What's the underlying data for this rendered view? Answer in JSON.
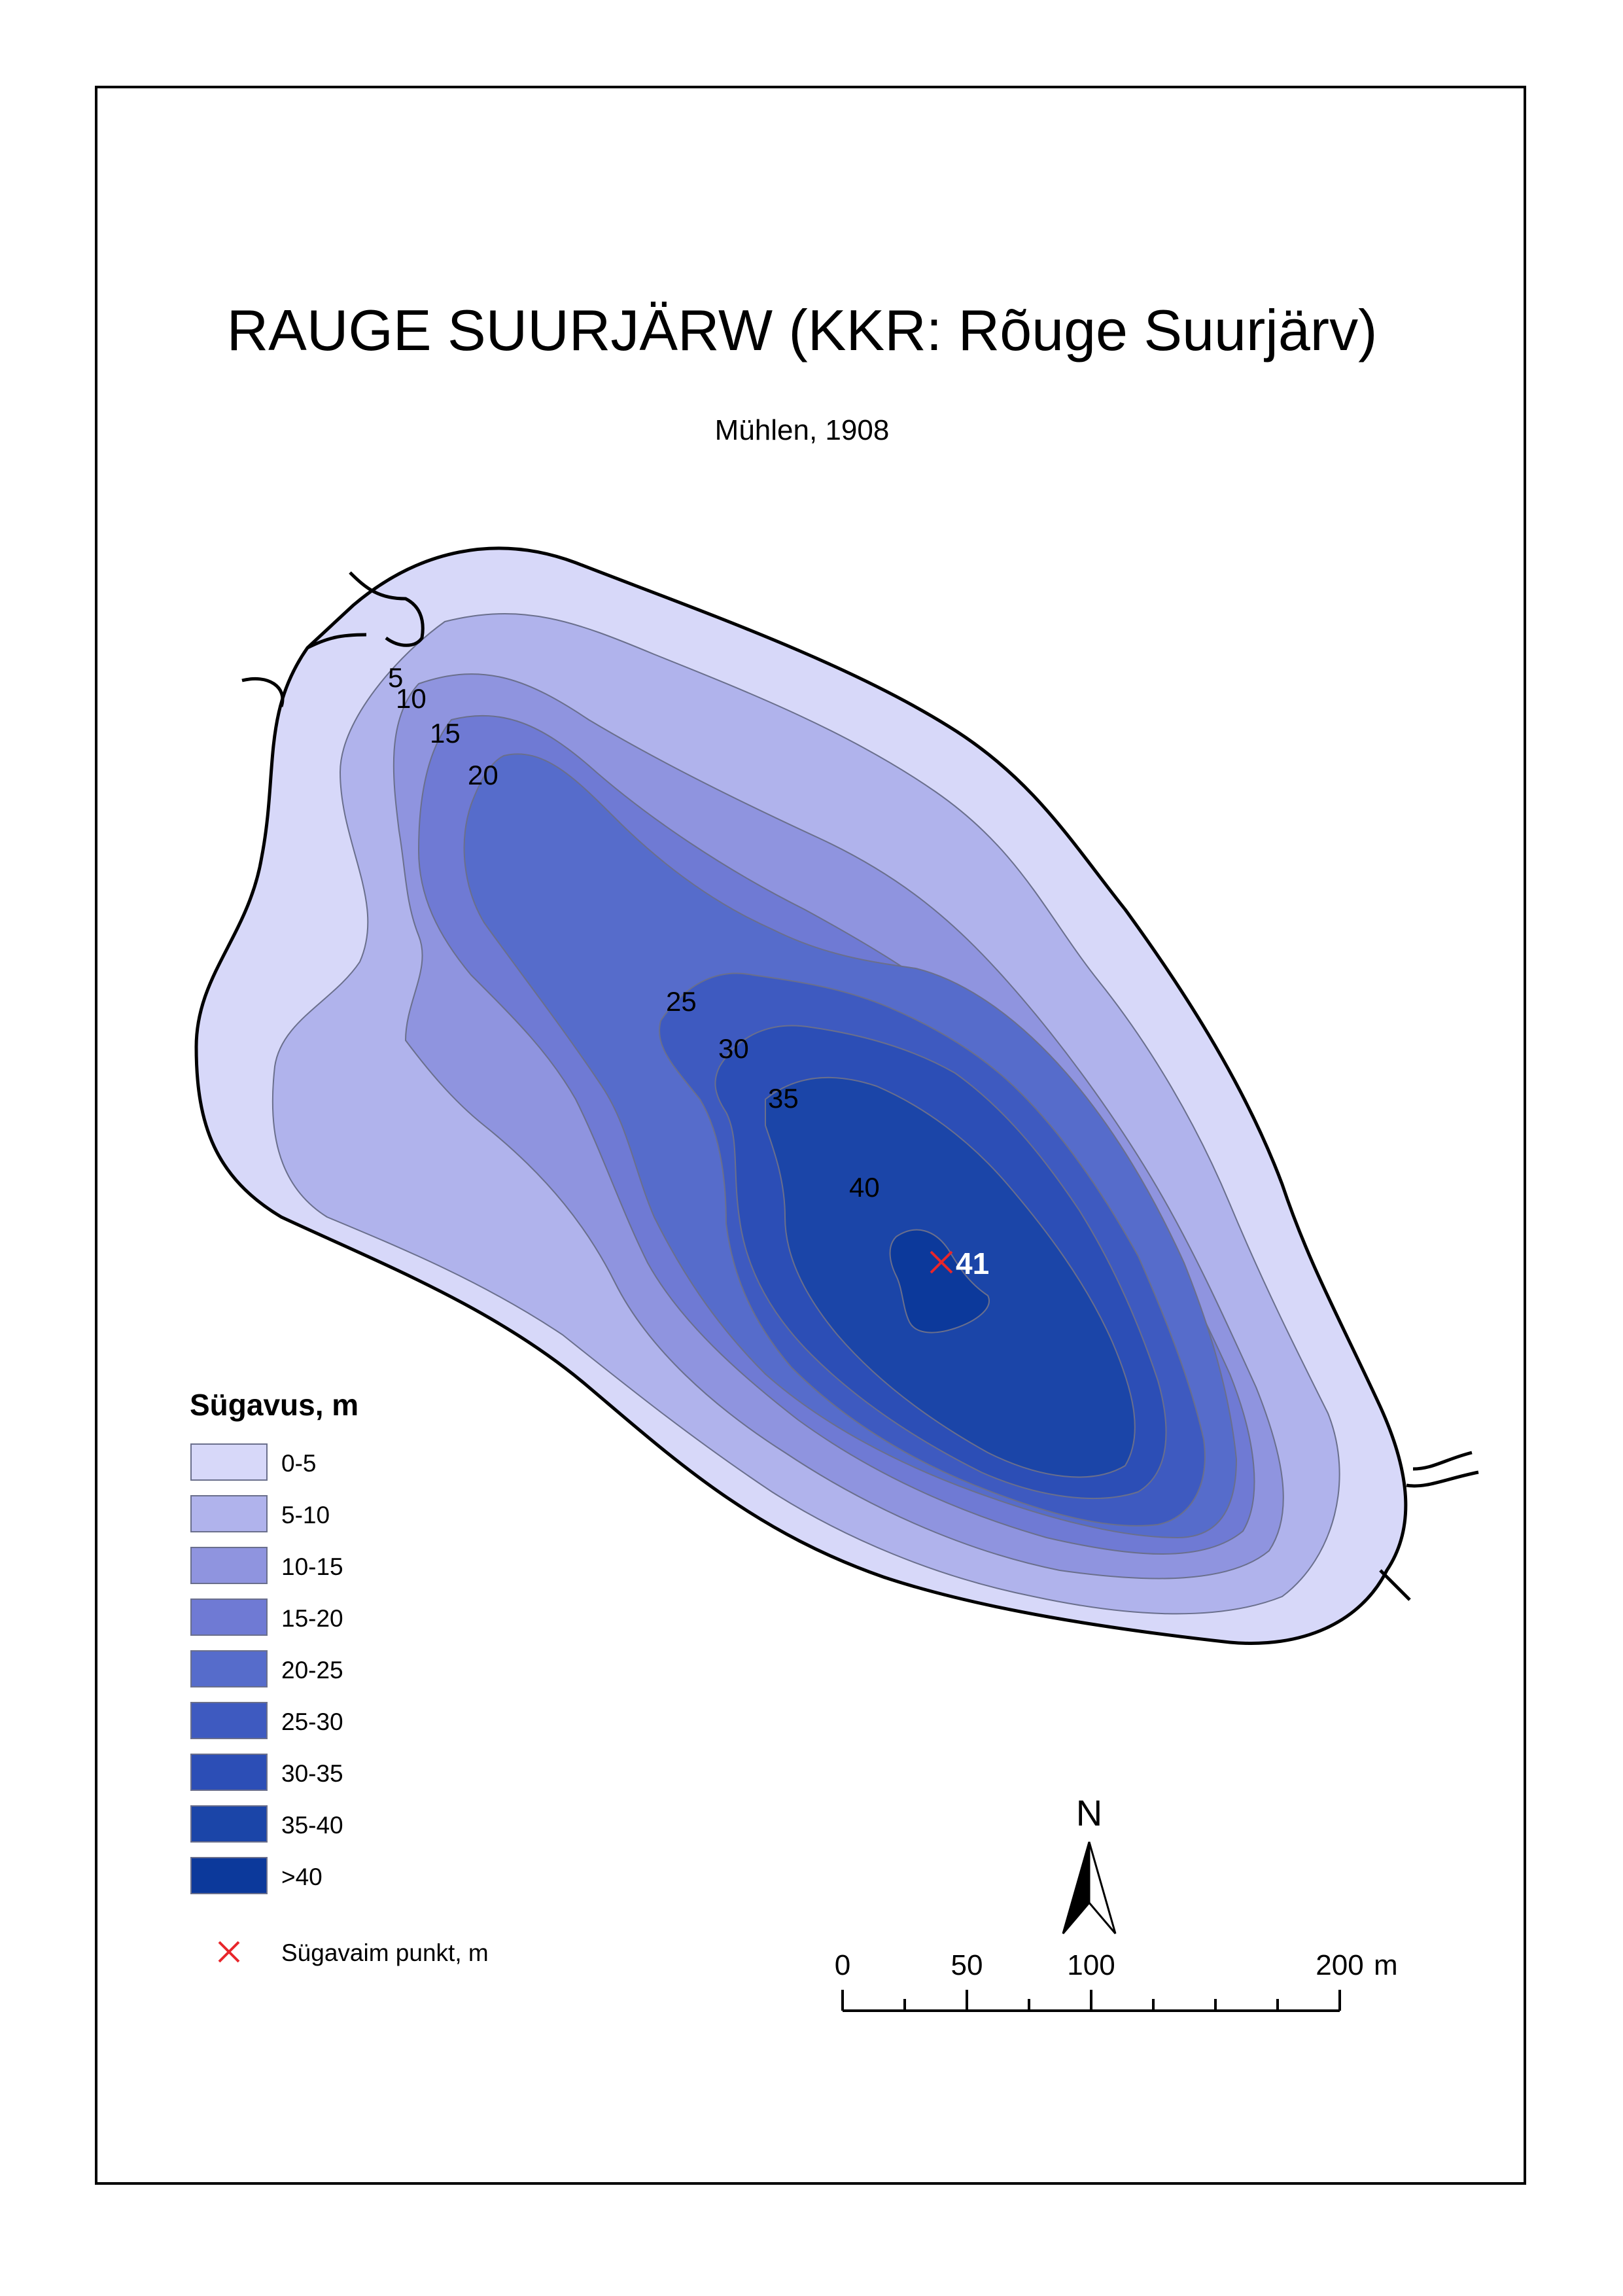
{
  "map": {
    "title": "RAUGE SUURJÄRW (KKR: Rõuge Suurjärv)",
    "subtitle": "Mühlen, 1908",
    "contour_labels": [
      "5",
      "10",
      "15",
      "20",
      "25",
      "30",
      "35",
      "40"
    ],
    "deepest_value": "41"
  },
  "legend": {
    "title": "Sügavus, m",
    "classes": [
      {
        "label": "0-5",
        "color": "#d7d8f9"
      },
      {
        "label": "5-10",
        "color": "#b0b3ec"
      },
      {
        "label": "10-15",
        "color": "#8f94df"
      },
      {
        "label": "15-20",
        "color": "#6f7ad4"
      },
      {
        "label": "20-25",
        "color": "#566ccb"
      },
      {
        "label": "25-30",
        "color": "#3e5ac0"
      },
      {
        "label": "30-35",
        "color": "#2c4eb6"
      },
      {
        "label": "35-40",
        "color": "#1b45a8"
      },
      {
        "label": ">40",
        "color": "#0c399b"
      }
    ],
    "deepest_point_label": "Sügavaim punkt, m"
  },
  "north_arrow": {
    "label": "N"
  },
  "scale_bar": {
    "labels": [
      "0",
      "50",
      "100",
      "200"
    ],
    "unit": "m"
  },
  "colors": {
    "shoreline": "#000000",
    "contour_line": "#6a6f8c",
    "deepest_marker": "#e8262b"
  }
}
